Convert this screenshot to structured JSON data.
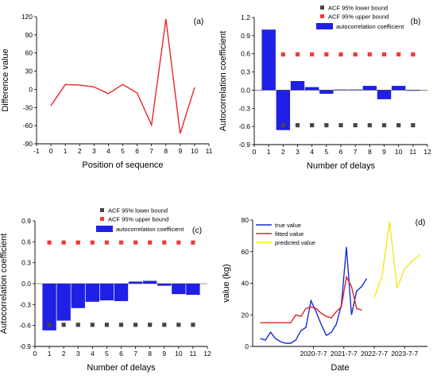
{
  "chart_data": [
    {
      "panel_label": "(a)",
      "type": "line",
      "xlabel": "Position of sequence",
      "ylabel": "Difference value",
      "xlim": [
        -1,
        11
      ],
      "ylim": [
        -90,
        120
      ],
      "xticks": [
        "-1",
        "0",
        "1",
        "2",
        "3",
        "4",
        "5",
        "6",
        "7",
        "8",
        "9",
        "10",
        "11"
      ],
      "yticks": [
        "-90",
        "-60",
        "-30",
        "0",
        "30",
        "60",
        "90",
        "120"
      ],
      "line_color": "#e8262a",
      "x": [
        0,
        1,
        2,
        3,
        4,
        5,
        6,
        7,
        8,
        9,
        10
      ],
      "y": [
        -27,
        8,
        7,
        4,
        -7,
        8,
        -6,
        -59,
        116,
        -73,
        3
      ]
    },
    {
      "panel_label": "(b)",
      "type": "bar",
      "xlabel": "Number of delays",
      "ylabel": "Autocorrelation coefficient",
      "xlim": [
        0,
        12
      ],
      "ylim": [
        -0.9,
        1.2
      ],
      "xticks": [
        "0",
        "1",
        "2",
        "3",
        "4",
        "5",
        "6",
        "7",
        "8",
        "9",
        "10",
        "11",
        "12"
      ],
      "yticks": [
        "-0.9",
        "-0.6",
        "-0.3",
        "0.0",
        "0.3",
        "0.6",
        "0.9",
        "1.2"
      ],
      "legend": [
        "ACF 95% lower bound",
        "ACF 95% upper bound",
        "autocorrelation coefficient"
      ],
      "legend_position": "top-right",
      "bar_color": "#1f1fe6",
      "lower_color": "#444444",
      "upper_color": "#ef3b3b",
      "categories": [
        1,
        2,
        3,
        4,
        5,
        6,
        7,
        8,
        9,
        10,
        11
      ],
      "values": [
        1.0,
        -0.66,
        0.15,
        0.05,
        -0.06,
        0.01,
        0.01,
        0.07,
        -0.15,
        0.07,
        -0.01
      ],
      "lower_bound": -0.58,
      "upper_bound": 0.59,
      "bound_x": [
        2,
        3,
        4,
        5,
        6,
        7,
        8,
        9,
        10,
        11
      ]
    },
    {
      "panel_label": "(c)",
      "type": "bar",
      "xlabel": "Number of delays",
      "ylabel": "Autocorrelation coefficient",
      "xlim": [
        0,
        12
      ],
      "ylim": [
        -0.9,
        0.9
      ],
      "xticks": [
        "0",
        "1",
        "2",
        "3",
        "4",
        "5",
        "6",
        "7",
        "8",
        "9",
        "10",
        "11",
        "12"
      ],
      "yticks": [
        "-0.9",
        "-0.6",
        "-0.3",
        "0.0",
        "0.3",
        "0.6",
        "0.9"
      ],
      "legend": [
        "ACF 95% lower bound",
        "ACF 95% upper bound",
        "autocorrelation coefficient"
      ],
      "legend_position": "top-center",
      "bar_color": "#1f1fe6",
      "lower_color": "#444444",
      "upper_color": "#ef3b3b",
      "categories": [
        1,
        2,
        3,
        4,
        5,
        6,
        7,
        8,
        9,
        10,
        11
      ],
      "values": [
        -0.67,
        -0.53,
        -0.35,
        -0.26,
        -0.24,
        -0.25,
        0.03,
        0.04,
        -0.03,
        -0.15,
        -0.16
      ],
      "lower_bound": -0.59,
      "upper_bound": 0.59,
      "bound_x": [
        1,
        2,
        3,
        4,
        5,
        6,
        7,
        8,
        9,
        10,
        11
      ]
    },
    {
      "panel_label": "(d)",
      "type": "line",
      "xlabel": "Date",
      "ylabel": "value (kg)",
      "ylim": [
        0,
        80
      ],
      "yticks": [
        "0",
        "20",
        "40",
        "60",
        "80"
      ],
      "x_domain": [
        "2018-07-07",
        "2024-04-07"
      ],
      "xticks": [
        {
          "label": "2020-7-7",
          "date": "2020-07-07"
        },
        {
          "label": "2021-7-7",
          "date": "2021-07-07"
        },
        {
          "label": "2022-7-7",
          "date": "2022-07-07"
        },
        {
          "label": "2023-7-7",
          "date": "2023-07-07"
        }
      ],
      "legend": [
        "true value",
        "fitted value",
        "predicted value"
      ],
      "legend_position": "top-left",
      "series": [
        {
          "name": "true value",
          "color": "#1a2bd6",
          "points": [
            [
              "2018-10-07",
              5
            ],
            [
              "2018-12-07",
              4
            ],
            [
              "2019-02-07",
              9
            ],
            [
              "2019-04-07",
              5
            ],
            [
              "2019-06-07",
              3
            ],
            [
              "2019-08-07",
              2
            ],
            [
              "2019-10-07",
              2
            ],
            [
              "2019-12-07",
              4
            ],
            [
              "2020-02-07",
              10
            ],
            [
              "2020-04-07",
              12
            ],
            [
              "2020-06-07",
              29
            ],
            [
              "2020-08-07",
              22
            ],
            [
              "2020-10-07",
              14
            ],
            [
              "2020-12-07",
              7
            ],
            [
              "2021-02-07",
              9
            ],
            [
              "2021-04-07",
              14
            ],
            [
              "2021-06-07",
              26
            ],
            [
              "2021-08-07",
              63
            ],
            [
              "2021-10-07",
              20
            ],
            [
              "2021-12-07",
              35
            ],
            [
              "2022-02-07",
              38
            ],
            [
              "2022-04-07",
              43
            ]
          ]
        },
        {
          "name": "fitted value",
          "color": "#e02020",
          "points": [
            [
              "2018-10-07",
              15
            ],
            [
              "2019-01-07",
              15
            ],
            [
              "2019-04-07",
              15
            ],
            [
              "2019-07-07",
              15
            ],
            [
              "2019-10-07",
              15
            ],
            [
              "2019-12-07",
              20
            ],
            [
              "2020-02-07",
              19
            ],
            [
              "2020-04-07",
              24
            ],
            [
              "2020-06-07",
              25
            ],
            [
              "2020-08-07",
              24
            ],
            [
              "2020-10-07",
              21
            ],
            [
              "2020-12-07",
              19
            ],
            [
              "2021-02-07",
              18
            ],
            [
              "2021-04-07",
              22
            ],
            [
              "2021-06-07",
              25
            ],
            [
              "2021-08-07",
              44
            ],
            [
              "2021-10-07",
              38
            ],
            [
              "2021-12-07",
              24
            ],
            [
              "2022-02-07",
              23
            ]
          ]
        },
        {
          "name": "predicted value",
          "color": "#f5e71a",
          "points": [
            [
              "2022-07-07",
              31
            ],
            [
              "2022-10-07",
              44
            ],
            [
              "2023-01-07",
              79
            ],
            [
              "2023-04-07",
              37
            ],
            [
              "2023-07-07",
              49
            ],
            [
              "2023-10-07",
              54
            ],
            [
              "2024-01-07",
              58
            ]
          ]
        }
      ]
    }
  ]
}
